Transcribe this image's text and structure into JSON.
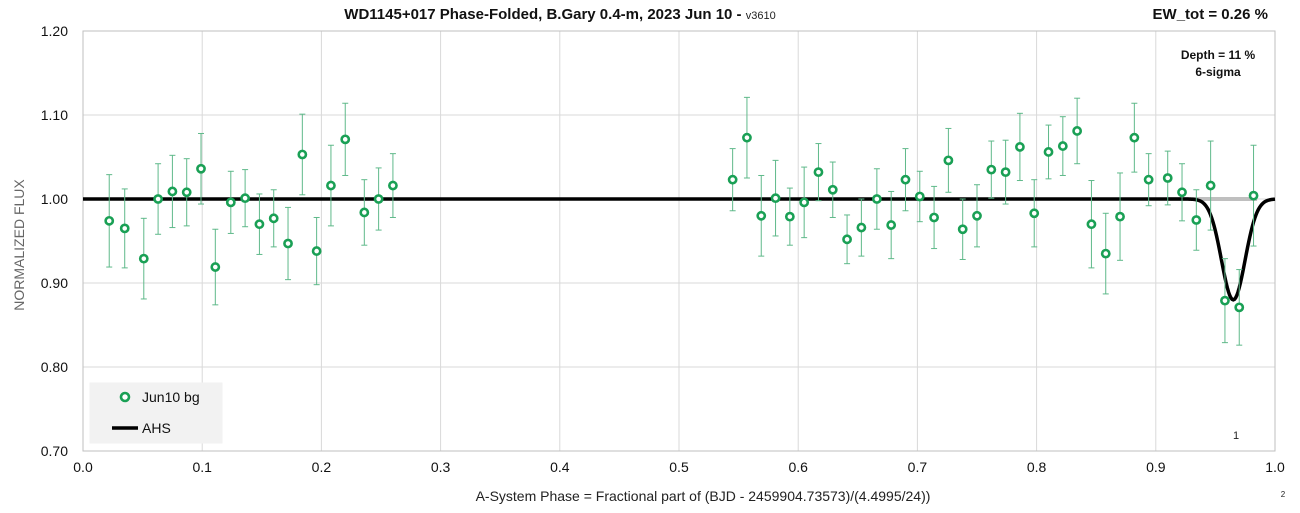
{
  "chart_data": {
    "type": "scatter",
    "title": "WD1145+017 Phase-Folded, B.Gary 0.4-m, 2023 Jun 10 - ",
    "version": "v3610",
    "ew_label": "EW_tot = 0.26 %",
    "depth_label": "Depth = 11 %",
    "sigma_label": "6-sigma",
    "xlabel": "A-System Phase = Fractional part of (BJD - 2459904.73573)/(4.4995/24))",
    "ylabel": "NORMALIZED FLUX",
    "xlim": [
      0.0,
      1.0
    ],
    "ylim": [
      0.7,
      1.2
    ],
    "x_ticks": [
      "0.0",
      "0.1",
      "0.2",
      "0.3",
      "0.4",
      "0.5",
      "0.6",
      "0.7",
      "0.8",
      "0.9",
      "1.0"
    ],
    "y_ticks": [
      "0.70",
      "0.80",
      "0.90",
      "1.00",
      "1.10",
      "1.20"
    ],
    "grid": true,
    "legend_position": "bottom-left",
    "marker_1": "1",
    "marker_2": "2",
    "series": [
      {
        "name": "Jun10 bg",
        "color": "#1aa055",
        "x": [
          0.022,
          0.035,
          0.051,
          0.063,
          0.075,
          0.087,
          0.099,
          0.111,
          0.124,
          0.136,
          0.148,
          0.16,
          0.172,
          0.184,
          0.196,
          0.208,
          0.22,
          0.236,
          0.248,
          0.26,
          0.545,
          0.557,
          0.569,
          0.581,
          0.593,
          0.605,
          0.617,
          0.629,
          0.641,
          0.653,
          0.666,
          0.678,
          0.69,
          0.702,
          0.714,
          0.726,
          0.738,
          0.75,
          0.762,
          0.774,
          0.786,
          0.798,
          0.81,
          0.822,
          0.834,
          0.846,
          0.858,
          0.87,
          0.882,
          0.894,
          0.91,
          0.922,
          0.934,
          0.946,
          0.958,
          0.97,
          0.982
        ],
        "y": [
          0.974,
          0.965,
          0.929,
          1.0,
          1.009,
          1.008,
          1.036,
          0.919,
          0.996,
          1.001,
          0.97,
          0.977,
          0.947,
          1.053,
          0.938,
          1.016,
          1.071,
          0.984,
          1.0,
          1.016,
          1.023,
          1.073,
          0.98,
          1.001,
          0.979,
          0.996,
          1.032,
          1.011,
          0.952,
          0.966,
          1.0,
          0.969,
          1.023,
          1.003,
          0.978,
          1.046,
          0.964,
          0.98,
          1.035,
          1.032,
          1.062,
          0.983,
          1.056,
          1.063,
          1.081,
          0.97,
          0.935,
          0.979,
          1.073,
          1.023,
          1.025,
          1.008,
          0.975,
          1.016,
          0.879,
          0.871,
          1.004
        ],
        "err": [
          0.055,
          0.047,
          0.048,
          0.042,
          0.043,
          0.04,
          0.042,
          0.045,
          0.037,
          0.034,
          0.036,
          0.034,
          0.043,
          0.048,
          0.04,
          0.048,
          0.043,
          0.039,
          0.037,
          0.038,
          0.037,
          0.048,
          0.048,
          0.045,
          0.034,
          0.042,
          0.034,
          0.033,
          0.029,
          0.034,
          0.036,
          0.04,
          0.037,
          0.03,
          0.037,
          0.038,
          0.036,
          0.037,
          0.034,
          0.038,
          0.04,
          0.04,
          0.032,
          0.035,
          0.039,
          0.052,
          0.048,
          0.052,
          0.041,
          0.031,
          0.032,
          0.034,
          0.036,
          0.053,
          0.05,
          0.045,
          0.06
        ]
      },
      {
        "name": "AHS",
        "color": "#000000",
        "dip_center": 0.965,
        "dip_depth": 0.12,
        "dip_width": 0.014
      }
    ]
  }
}
